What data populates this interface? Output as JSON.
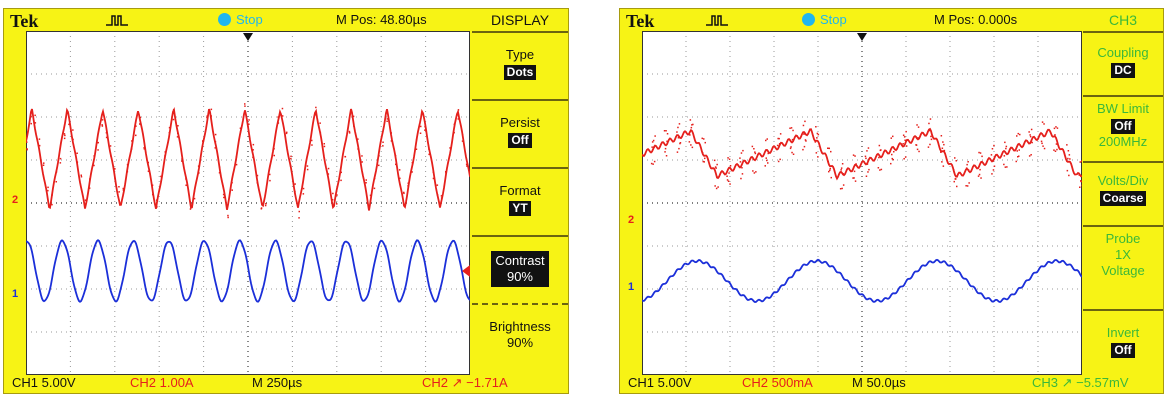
{
  "left": {
    "brand": "Tek",
    "trigger_icon": "pulse-trigger-icon",
    "run_state": "Stop",
    "mpos": "M Pos: 48.80µs",
    "menu": {
      "title": "DISPLAY",
      "items": [
        {
          "label": "Type",
          "value": "Dots"
        },
        {
          "label": "Persist",
          "value": "Off"
        },
        {
          "label": "Format",
          "value": "YT"
        },
        {
          "label": "Contrast",
          "value": "90%"
        },
        {
          "label": "Brightness",
          "value": "90%"
        }
      ]
    },
    "bottom": {
      "ch1": "CH1  5.00V",
      "ch2": "CH2  1.00A",
      "time": "M 250µs",
      "trigger": "CH2 ↗ −1.71A"
    },
    "markers": {
      "ch1": "1",
      "ch2": "2"
    },
    "colors": {
      "ch1": "#1b2fd9",
      "ch2": "#e5201c",
      "background": "#f7f315"
    }
  },
  "right": {
    "brand": "Tek",
    "trigger_icon": "pulse-trigger-icon",
    "run_state": "Stop",
    "mpos": "M Pos: 0.000s",
    "menu": {
      "title": "CH3",
      "items": [
        {
          "label": "Coupling",
          "value": "DC"
        },
        {
          "label": "BW Limit",
          "value": "Off",
          "sub": "200MHz"
        },
        {
          "label": "Volts/Div",
          "value": "Coarse"
        },
        {
          "label": "Probe",
          "sub1": "1X",
          "sub2": "Voltage"
        },
        {
          "label": "Invert",
          "value": "Off"
        }
      ]
    },
    "bottom": {
      "ch1": "CH1  5.00V",
      "ch2": "CH2  500mA",
      "time": "M 50.0µs",
      "trigger": "CH3 ↗ −5.57mV"
    },
    "markers": {
      "ch1": "1",
      "ch2": "2"
    },
    "colors": {
      "ch1": "#1b2fd9",
      "ch2": "#e5201c",
      "menu_text": "#3bb83a"
    }
  }
}
